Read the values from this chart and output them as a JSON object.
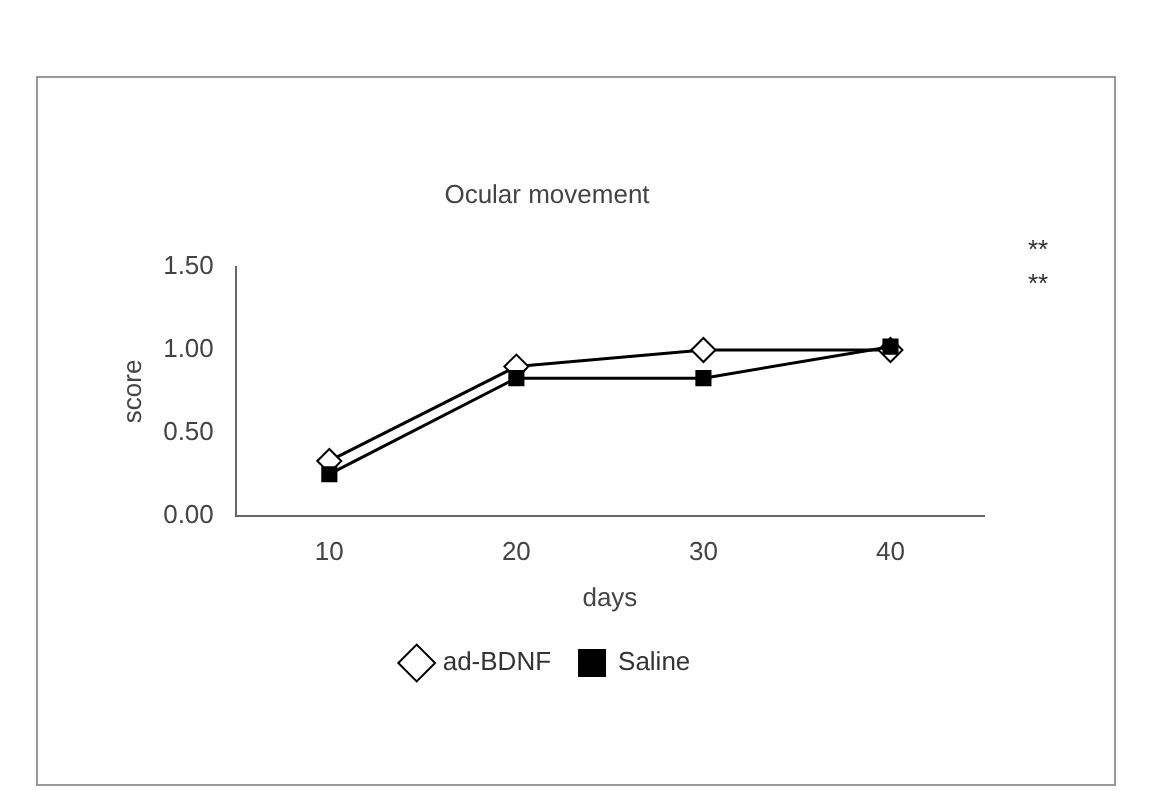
{
  "chart_data": {
    "type": "line",
    "title": "Ocular movement",
    "xlabel": "days",
    "ylabel": "score",
    "categories": [
      "10",
      "20",
      "30",
      "40"
    ],
    "series": [
      {
        "name": "ad-BDNF",
        "color": "#000000",
        "marker": "diamond",
        "values": [
          0.33,
          0.9,
          1.0,
          1.0
        ]
      },
      {
        "name": "Saline",
        "color": "#000000",
        "marker": "square",
        "values": [
          0.25,
          0.83,
          0.83,
          1.02
        ]
      }
    ],
    "ylim": [
      0,
      1.5
    ],
    "yticks": [
      {
        "value": 0,
        "label": "0.00"
      },
      {
        "value": 0.5,
        "label": "0.50"
      },
      {
        "value": 1,
        "label": "1.00"
      },
      {
        "value": 1.5,
        "label": "1.50"
      }
    ],
    "grid": false,
    "legend": "bottom",
    "line_style": "solid",
    "annotations": [
      "**",
      "**"
    ]
  }
}
